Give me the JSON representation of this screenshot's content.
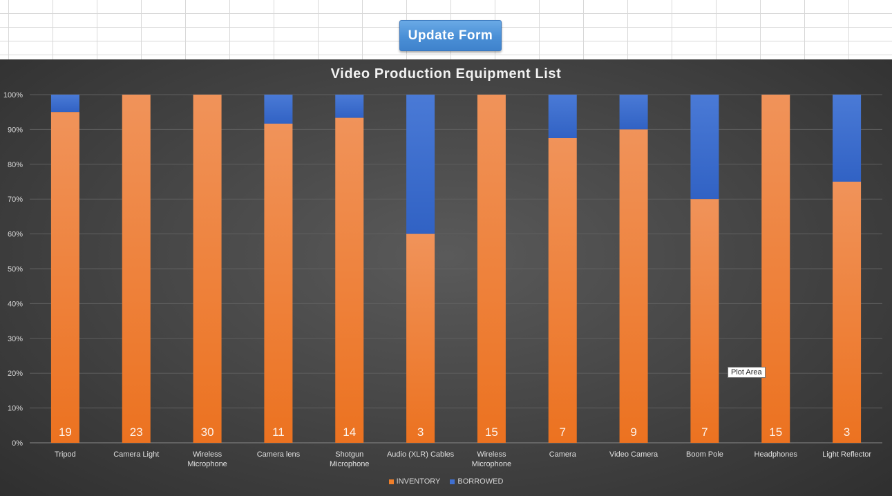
{
  "button": {
    "label": "Update Form"
  },
  "tooltip": {
    "text": "Plot Area"
  },
  "colors": {
    "inventory": "#f07f2a",
    "borrowed": "#3f6fd0"
  },
  "chart_data": {
    "type": "bar",
    "stacked": "percent",
    "title": "Video Production Equipment List",
    "categories": [
      [
        "Tripod"
      ],
      [
        "Camera Light"
      ],
      [
        "Wireless",
        "Microphone"
      ],
      [
        "Camera lens"
      ],
      [
        "Shotgun",
        "Microphone"
      ],
      [
        "Audio (XLR) Cables"
      ],
      [
        "Wireless",
        "Microphone"
      ],
      [
        "Camera"
      ],
      [
        "Video Camera"
      ],
      [
        "Boom Pole"
      ],
      [
        "Headphones"
      ],
      [
        "Light Reflector"
      ]
    ],
    "series": [
      {
        "name": "INVENTORY",
        "values": [
          19,
          23,
          30,
          11,
          14,
          3,
          15,
          7,
          9,
          7,
          15,
          3
        ]
      },
      {
        "name": "BORROWED",
        "values": [
          1,
          0,
          0,
          1,
          1,
          2,
          0,
          1,
          1,
          3,
          0,
          1
        ]
      }
    ],
    "y_ticks": [
      "0%",
      "10%",
      "20%",
      "30%",
      "40%",
      "50%",
      "60%",
      "70%",
      "80%",
      "90%",
      "100%"
    ],
    "ylim": [
      0,
      100
    ],
    "grid": true,
    "legend_position": "bottom"
  }
}
